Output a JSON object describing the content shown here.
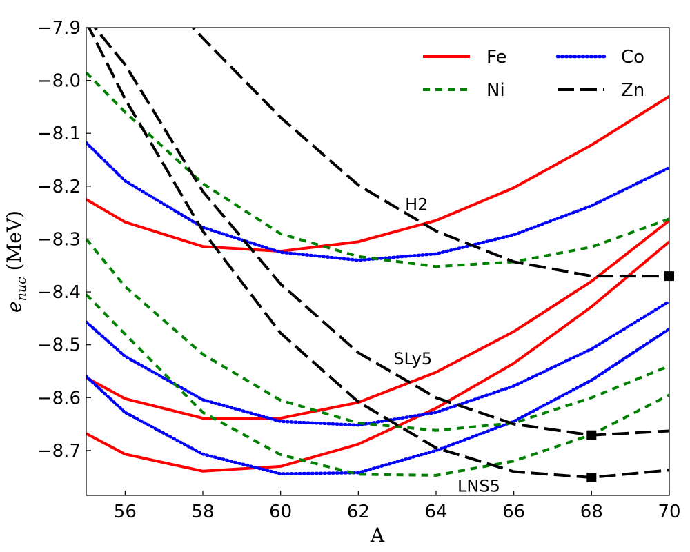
{
  "chart_data": {
    "type": "line",
    "xlabel": "A",
    "ylabel_main": "e",
    "ylabel_sub": "nuc",
    "ylabel_unit": " (MeV)",
    "xlim": [
      55,
      70
    ],
    "ylim": [
      -8.785,
      -7.9
    ],
    "xticks": [
      56,
      58,
      60,
      62,
      64,
      66,
      68,
      70
    ],
    "yticks": [
      -7.9,
      -8.0,
      -8.1,
      -8.2,
      -8.3,
      -8.4,
      -8.5,
      -8.6,
      -8.7
    ],
    "ytick_labels": [
      "−7.9",
      "−8.0",
      "−8.1",
      "−8.2",
      "−8.3",
      "−8.4",
      "−8.5",
      "−8.6",
      "−8.7"
    ],
    "styles": {
      "Fe": {
        "color": "#ff0000",
        "dash": "solid"
      },
      "Co": {
        "color": "#0000ff",
        "dash": "dotted"
      },
      "Ni": {
        "color": "#008000",
        "dash": "dashed"
      },
      "Zn": {
        "color": "#000000",
        "dash": "longdash"
      }
    },
    "legend": {
      "position": "top-right",
      "entries": [
        "Fe",
        "Co",
        "Ni",
        "Zn"
      ]
    },
    "annotations": [
      {
        "text": "H2",
        "x": 63.5,
        "y": -8.245
      },
      {
        "text": "SLy5",
        "x": 63.4,
        "y": -8.537
      },
      {
        "text": "LNS5",
        "x": 65.1,
        "y": -8.778
      }
    ],
    "series": [
      {
        "name": "Fe",
        "model": "H2",
        "x": [
          55,
          56,
          58,
          60,
          62,
          64,
          66,
          68,
          70
        ],
        "y": [
          -8.225,
          -8.268,
          -8.314,
          -8.323,
          -8.305,
          -8.265,
          -8.203,
          -8.122,
          -8.03
        ]
      },
      {
        "name": "Fe",
        "model": "SLy5",
        "x": [
          55,
          56,
          58,
          60,
          62,
          64,
          66,
          68,
          70
        ],
        "y": [
          -8.562,
          -8.602,
          -8.639,
          -8.639,
          -8.609,
          -8.552,
          -8.475,
          -8.38,
          -8.265
        ]
      },
      {
        "name": "Fe",
        "model": "LNS5",
        "x": [
          55,
          56,
          58,
          60,
          62,
          64,
          66,
          68,
          70
        ],
        "y": [
          -8.668,
          -8.707,
          -8.739,
          -8.73,
          -8.688,
          -8.62,
          -8.535,
          -8.428,
          -8.305
        ]
      },
      {
        "name": "Co",
        "model": "H2",
        "x": [
          55,
          56,
          58,
          60,
          62,
          64,
          66,
          68,
          70
        ],
        "y": [
          -8.118,
          -8.19,
          -8.278,
          -8.325,
          -8.34,
          -8.328,
          -8.292,
          -8.237,
          -8.165
        ]
      },
      {
        "name": "Co",
        "model": "SLy5",
        "x": [
          55,
          56,
          58,
          60,
          62,
          64,
          66,
          68,
          70
        ],
        "y": [
          -8.457,
          -8.522,
          -8.604,
          -8.645,
          -8.652,
          -8.628,
          -8.578,
          -8.508,
          -8.418
        ]
      },
      {
        "name": "Co",
        "model": "LNS5",
        "x": [
          55,
          56,
          58,
          60,
          62,
          64,
          66,
          68,
          70
        ],
        "y": [
          -8.56,
          -8.628,
          -8.707,
          -8.744,
          -8.742,
          -8.7,
          -8.645,
          -8.567,
          -8.47
        ]
      },
      {
        "name": "Ni",
        "model": "H2",
        "x": [
          55,
          56,
          58,
          60,
          62,
          64,
          66,
          68,
          70
        ],
        "y": [
          -7.985,
          -8.06,
          -8.195,
          -8.29,
          -8.333,
          -8.352,
          -8.343,
          -8.315,
          -8.262
        ]
      },
      {
        "name": "Ni",
        "model": "SLy5",
        "x": [
          55,
          56,
          58,
          60,
          62,
          64,
          66,
          68,
          70
        ],
        "y": [
          -8.3,
          -8.39,
          -8.518,
          -8.605,
          -8.648,
          -8.662,
          -8.648,
          -8.6,
          -8.54
        ]
      },
      {
        "name": "Ni",
        "model": "LNS5",
        "x": [
          55,
          56,
          58,
          60,
          62,
          64,
          66,
          68,
          70
        ],
        "y": [
          -8.405,
          -8.48,
          -8.628,
          -8.708,
          -8.745,
          -8.747,
          -8.72,
          -8.67,
          -8.595
        ]
      },
      {
        "name": "Zn",
        "model": "H2",
        "x": [
          57.5,
          58,
          60,
          62,
          64,
          66,
          68,
          70
        ],
        "y": [
          -7.88,
          -7.92,
          -8.07,
          -8.198,
          -8.285,
          -8.343,
          -8.37,
          -8.37
        ]
      },
      {
        "name": "Zn",
        "model": "SLy5",
        "x": [
          55,
          56,
          58,
          60,
          62,
          64,
          66,
          68,
          70
        ],
        "y": [
          -7.88,
          -7.97,
          -8.21,
          -8.385,
          -8.515,
          -8.6,
          -8.65,
          -8.671,
          -8.663
        ]
      },
      {
        "name": "Zn",
        "model": "LNS5",
        "x": [
          55,
          56,
          58,
          60,
          62,
          64,
          66,
          68,
          70
        ],
        "y": [
          -7.89,
          -8.035,
          -8.285,
          -8.478,
          -8.608,
          -8.695,
          -8.74,
          -8.751,
          -8.737
        ]
      }
    ],
    "markers": [
      {
        "series": "Zn",
        "model": "H2",
        "x": 70,
        "y": -8.37,
        "shape": "square"
      },
      {
        "series": "Zn",
        "model": "SLy5",
        "x": 68,
        "y": -8.671,
        "shape": "square"
      },
      {
        "series": "Zn",
        "model": "LNS5",
        "x": 68,
        "y": -8.751,
        "shape": "square"
      }
    ]
  }
}
